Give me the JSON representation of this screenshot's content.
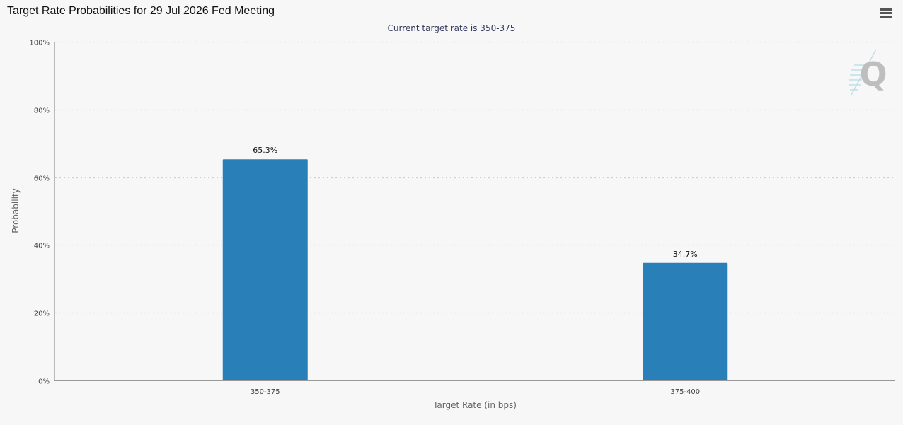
{
  "title": "Target Rate Probabilities for 29 Jul 2026 Fed Meeting",
  "menu_icon": "hamburger-menu-icon",
  "logo_icon": "q-watermark-logo",
  "chart_data": {
    "type": "bar",
    "title": "Target Rate Probabilities for 29 Jul 2026 Fed Meeting",
    "subtitle": "Current target rate is 350-375",
    "xlabel": "Target Rate (in bps)",
    "ylabel": "Probability",
    "categories": [
      "350-375",
      "375-400"
    ],
    "values": [
      65.3,
      34.7
    ],
    "data_labels": [
      "65.3%",
      "34.7%"
    ],
    "ylim": [
      0,
      100
    ],
    "yticks": [
      0,
      20,
      40,
      60,
      80,
      100
    ],
    "ytick_labels": [
      "0%",
      "20%",
      "40%",
      "60%",
      "80%",
      "100%"
    ],
    "grid": true,
    "legend": "none",
    "bar_color": "#2980b9"
  }
}
